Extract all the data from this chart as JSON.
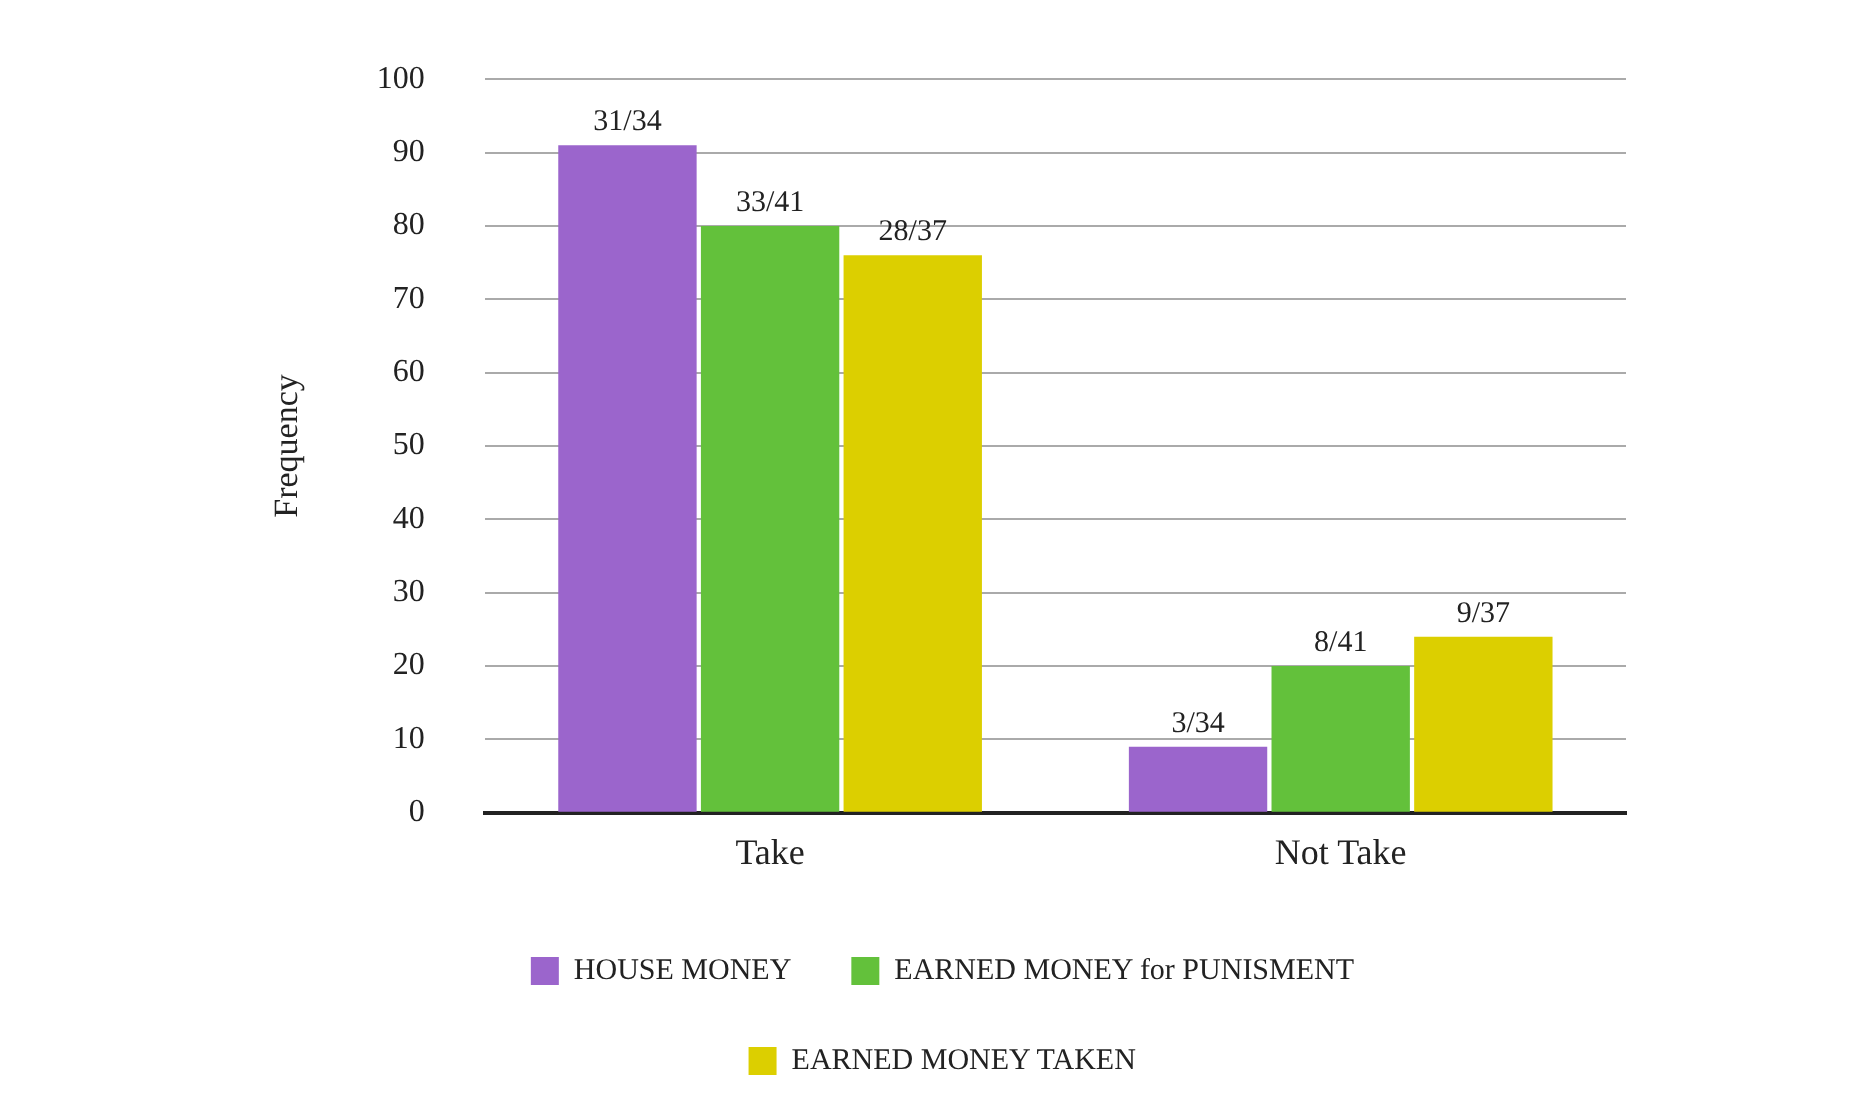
{
  "chart_data": {
    "type": "bar",
    "ylabel": "Frequency",
    "categories": [
      "Take",
      "Not Take"
    ],
    "series": [
      {
        "name": "HOUSE MONEY",
        "color": "#9b65cc",
        "values": [
          91,
          9
        ],
        "value_labels": [
          "31/34",
          "3/34"
        ]
      },
      {
        "name": "EARNED MONEY for PUNISMENT",
        "color": "#63c13b",
        "values": [
          80,
          20
        ],
        "value_labels": [
          "33/41",
          "8/41"
        ]
      },
      {
        "name": "EARNED MONEY TAKEN",
        "color": "#dccf00",
        "values": [
          76,
          24
        ],
        "value_labels": [
          "28/37",
          "9/37"
        ]
      }
    ],
    "ylim": [
      0,
      100
    ],
    "yticks": [
      0,
      10,
      20,
      30,
      40,
      50,
      60,
      70,
      80,
      90,
      100
    ],
    "grid": "y",
    "legend": "bottom"
  }
}
